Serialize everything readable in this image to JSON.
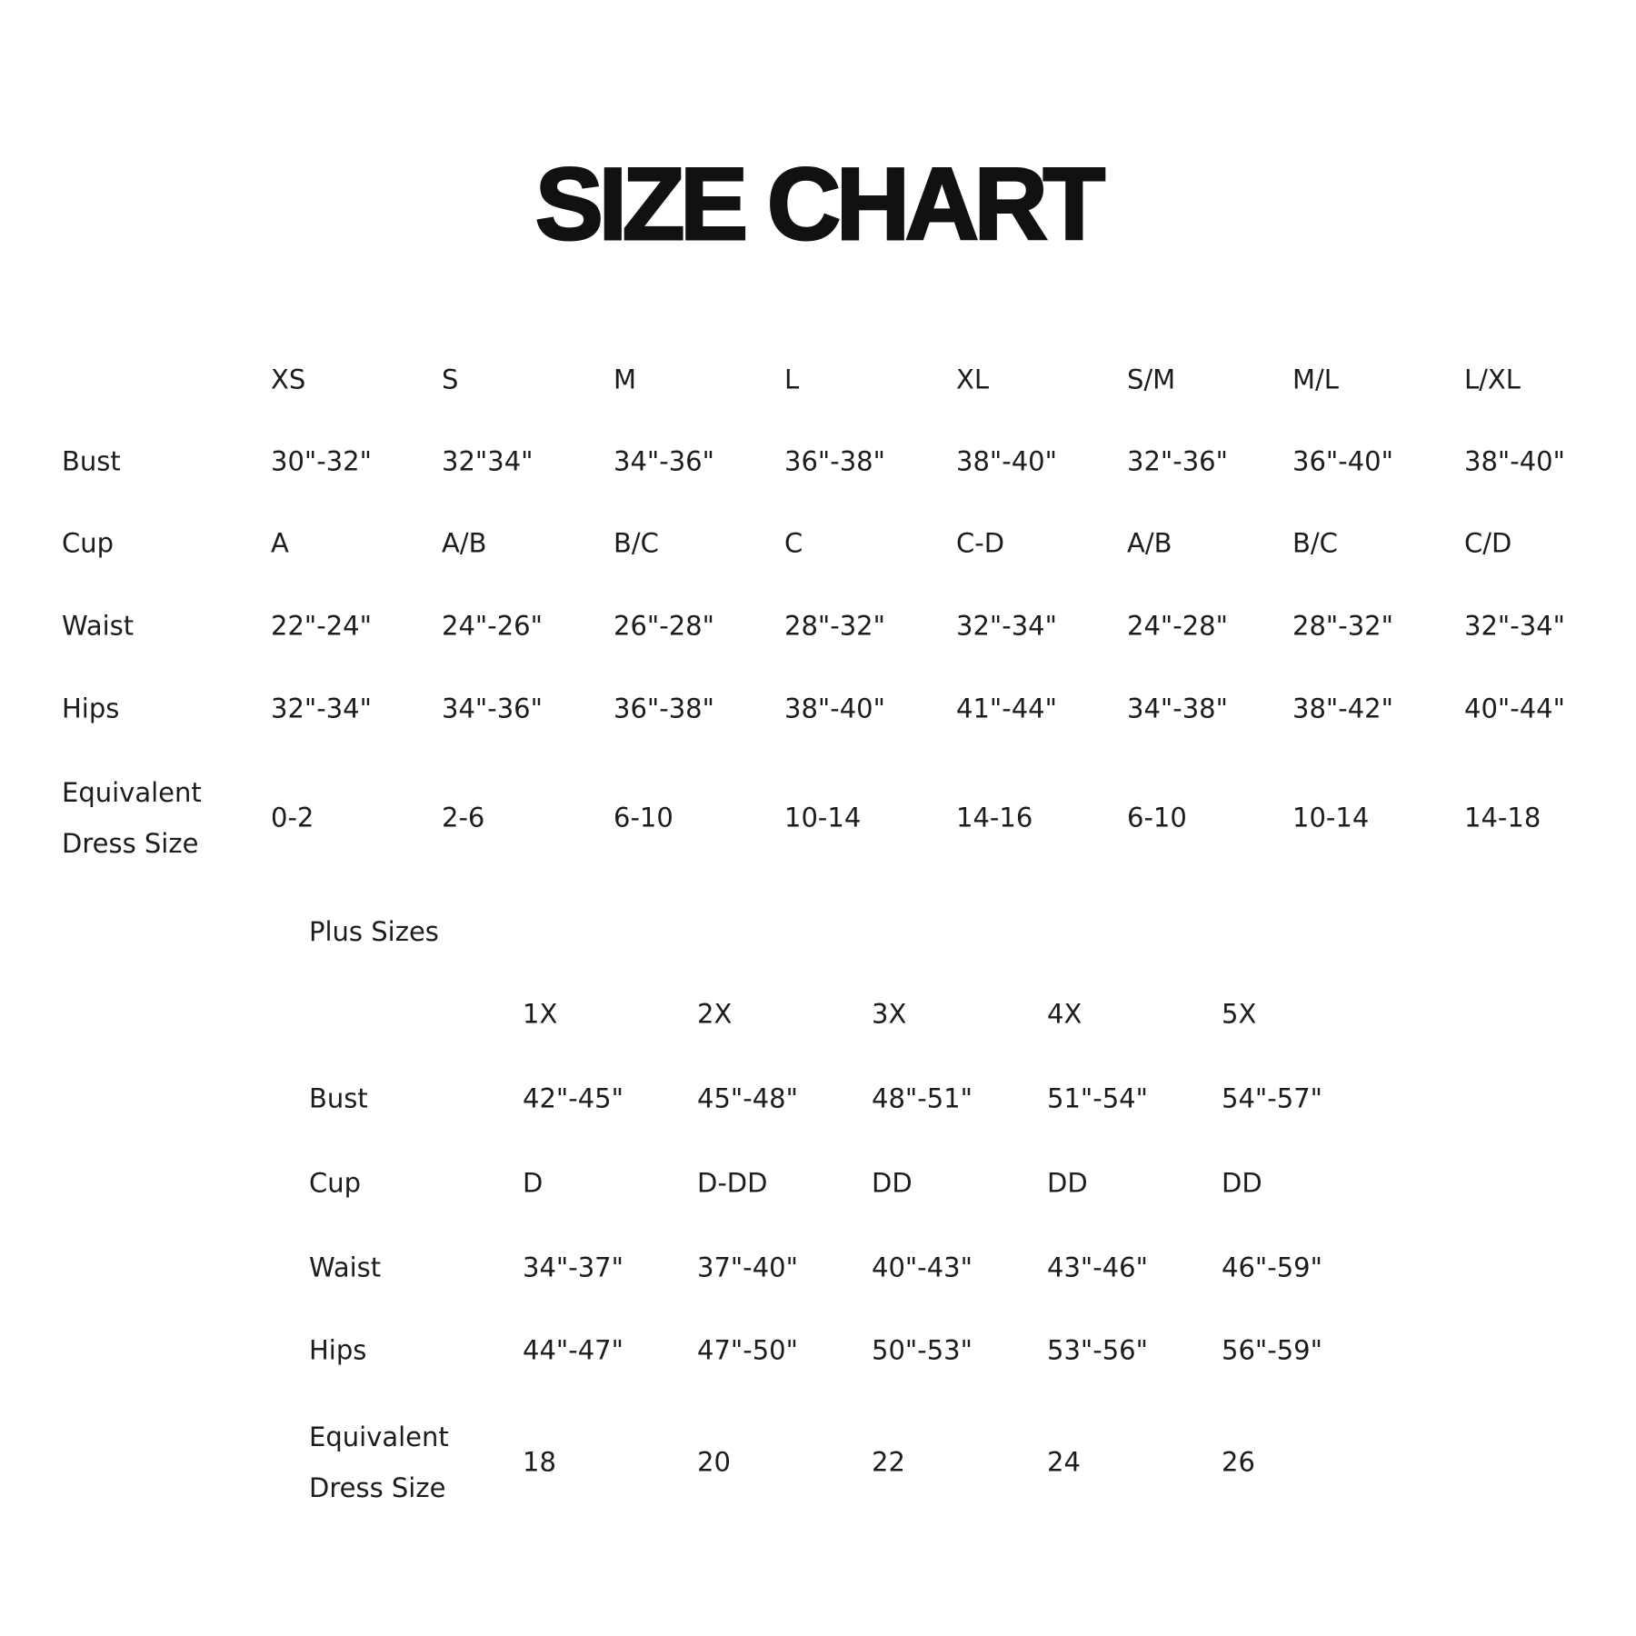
{
  "title": "SIZE CHART",
  "standard": {
    "sizes": [
      "XS",
      "S",
      "M",
      "L",
      "XL",
      "S/M",
      "M/L",
      "L/XL"
    ],
    "rows": [
      {
        "label": "Bust",
        "values": [
          "30\"-32\"",
          "32\"34\"",
          "34\"-36\"",
          "36\"-38\"",
          "38\"-40\"",
          "32\"-36\"",
          "36\"-40\"",
          "38\"-40\""
        ]
      },
      {
        "label": "Cup",
        "values": [
          "A",
          "A/B",
          "B/C",
          "C",
          "C-D",
          "A/B",
          "B/C",
          "C/D"
        ]
      },
      {
        "label": "Waist",
        "values": [
          "22\"-24\"",
          "24\"-26\"",
          "26\"-28\"",
          "28\"-32\"",
          "32\"-34\"",
          "24\"-28\"",
          "28\"-32\"",
          "32\"-34\""
        ]
      },
      {
        "label": "Hips",
        "values": [
          "32\"-34\"",
          "34\"-36\"",
          "36\"-38\"",
          "38\"-40\"",
          "41\"-44\"",
          "34\"-38\"",
          "38\"-42\"",
          "40\"-44\""
        ]
      },
      {
        "label": "Equivalent Dress Size",
        "values": [
          "0-2",
          "2-6",
          "6-10",
          "10-14",
          "14-16",
          "6-10",
          "10-14",
          "14-18"
        ]
      }
    ]
  },
  "plus": {
    "title": "Plus Sizes",
    "sizes": [
      "1X",
      "2X",
      "3X",
      "4X",
      "5X"
    ],
    "rows": [
      {
        "label": "Bust",
        "values": [
          "42\"-45\"",
          "45\"-48\"",
          "48\"-51\"",
          "51\"-54\"",
          "54\"-57\""
        ]
      },
      {
        "label": "Cup",
        "values": [
          "D",
          "D-DD",
          "DD",
          "DD",
          "DD"
        ]
      },
      {
        "label": "Waist",
        "values": [
          "34\"-37\"",
          "37\"-40\"",
          "40\"-43\"",
          "43\"-46\"",
          "46\"-59\""
        ]
      },
      {
        "label": "Hips",
        "values": [
          "44\"-47\"",
          "47\"-50\"",
          "50\"-53\"",
          "53\"-56\"",
          "56\"-59\""
        ]
      },
      {
        "label": "Equivalent Dress Size",
        "values": [
          "18",
          "20",
          "22",
          "24",
          "26"
        ]
      }
    ]
  }
}
